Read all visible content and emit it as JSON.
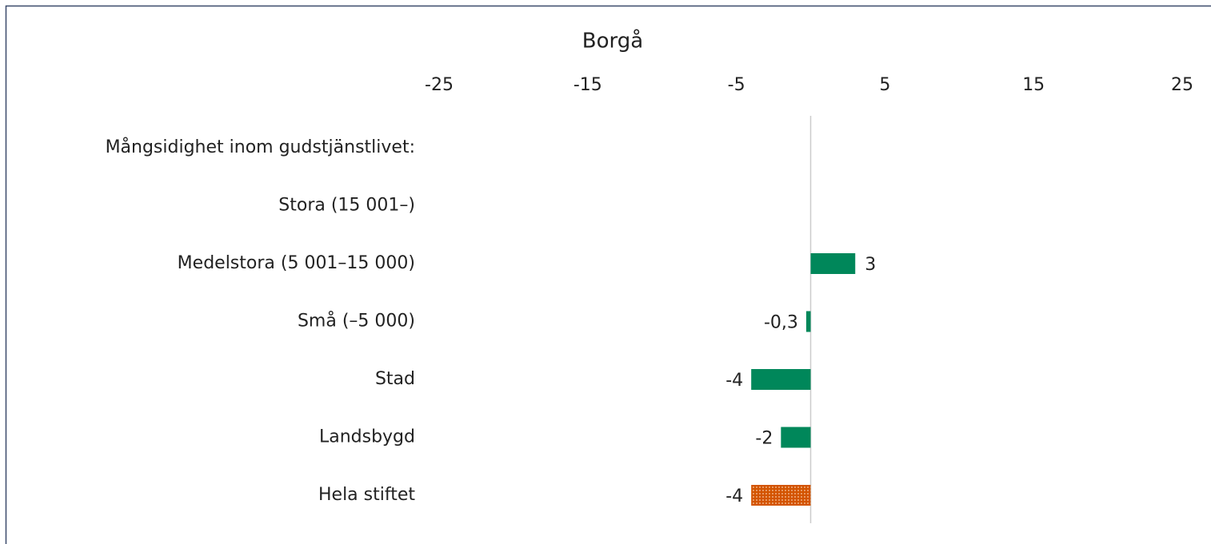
{
  "chart_data": {
    "type": "hbar",
    "title": "Borgå",
    "categories": [
      "Mångsidighet inom gudstjänstlivet:",
      "Stora (15 001–)",
      "Medelstora (5 001–15 000)",
      "Små (–5 000)",
      "Stad",
      "Landsbygd",
      "Hela stiftet"
    ],
    "values": [
      null,
      null,
      3,
      -0.3,
      -4,
      -2,
      -4
    ],
    "value_labels": [
      null,
      null,
      "3",
      "-0,3",
      "-4",
      "-2",
      "-4"
    ],
    "colors": [
      "#00875a",
      "#00875a",
      "#00875a",
      "#00875a",
      "#00875a",
      "#00875a",
      "#d35400"
    ],
    "patterns": [
      null,
      null,
      null,
      null,
      null,
      null,
      "dots"
    ],
    "xlim": [
      -25,
      25
    ],
    "xticks": [
      -25,
      -15,
      -5,
      5,
      15,
      25
    ],
    "grid": false
  }
}
